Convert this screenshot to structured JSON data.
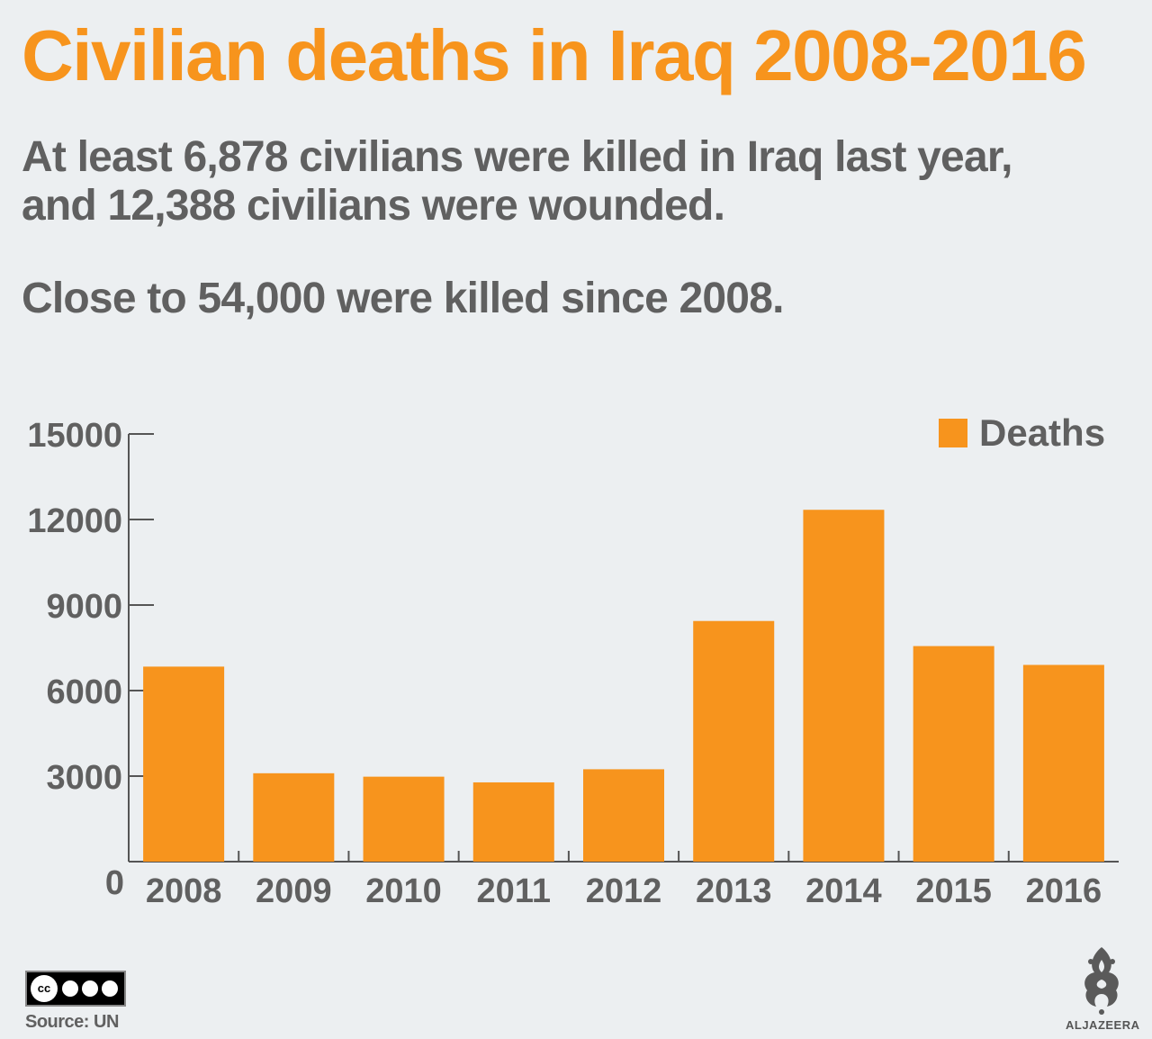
{
  "header": {
    "title": "Civilian deaths in Iraq 2008-2016",
    "subtitle_line1": "At least 6,878 civilians were killed in Iraq last year,",
    "subtitle_line2": "and 12,388 civilians were wounded.",
    "subtitle_line3": "Close to 54,000 were killed since 2008."
  },
  "footer": {
    "source": "Source: UN",
    "cc_icon": "creative-commons-by-nc-sa-icon",
    "logo_icon": "aljazeera-logo-icon",
    "logo_text": "ALJAZEERA"
  },
  "colors": {
    "accent": "#f7941d",
    "text": "#606060",
    "background": "#eceff1"
  },
  "chart_data": {
    "type": "bar",
    "categories": [
      "2008",
      "2009",
      "2010",
      "2011",
      "2012",
      "2013",
      "2014",
      "2015",
      "2016"
    ],
    "series": [
      {
        "name": "Deaths",
        "values": [
          6840,
          3100,
          2980,
          2780,
          3240,
          8440,
          12340,
          7560,
          6900
        ],
        "color": "#f7941d"
      }
    ],
    "yticks": [
      0,
      3000,
      6000,
      9000,
      12000,
      15000
    ],
    "ylim": [
      0,
      15000
    ],
    "legend": "top-right",
    "grid": false
  }
}
